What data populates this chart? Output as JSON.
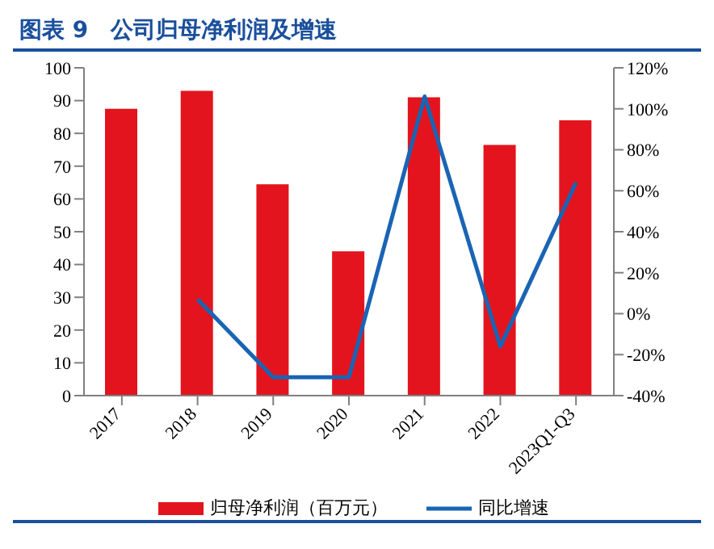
{
  "chart_data": {
    "type": "bar",
    "title": "图表 9　公司归母净利润及增速",
    "categories": [
      "2017",
      "2018",
      "2019",
      "2020",
      "2021",
      "2022",
      "2023Q1-Q3"
    ],
    "series": [
      {
        "name": "归母净利润（百万元）",
        "color": "#e3141d",
        "values": [
          87.5,
          93,
          64.5,
          44,
          91,
          76.5,
          84
        ]
      },
      {
        "name": "同比增速",
        "type": "line",
        "axis": "y2",
        "color": "#1a64b4",
        "values": [
          null,
          7,
          -31,
          -31,
          106,
          -16,
          64
        ]
      }
    ],
    "ylim": [
      0,
      100
    ],
    "yticks": [
      0,
      10,
      20,
      30,
      40,
      50,
      60,
      70,
      80,
      90,
      100
    ],
    "y2lim": [
      -40,
      120
    ],
    "y2ticks": [
      {
        "value": -40,
        "label": "-40%"
      },
      {
        "value": -20,
        "label": "-20%"
      },
      {
        "value": 0,
        "label": "0%"
      },
      {
        "value": 20,
        "label": "20%"
      },
      {
        "value": 40,
        "label": "40%"
      },
      {
        "value": 60,
        "label": "60%"
      },
      {
        "value": 80,
        "label": "80%"
      },
      {
        "value": 100,
        "label": "100%"
      },
      {
        "value": 120,
        "label": "120%"
      }
    ],
    "legend": "bottom",
    "grid": false,
    "marker": "none",
    "line_style": "solid"
  }
}
